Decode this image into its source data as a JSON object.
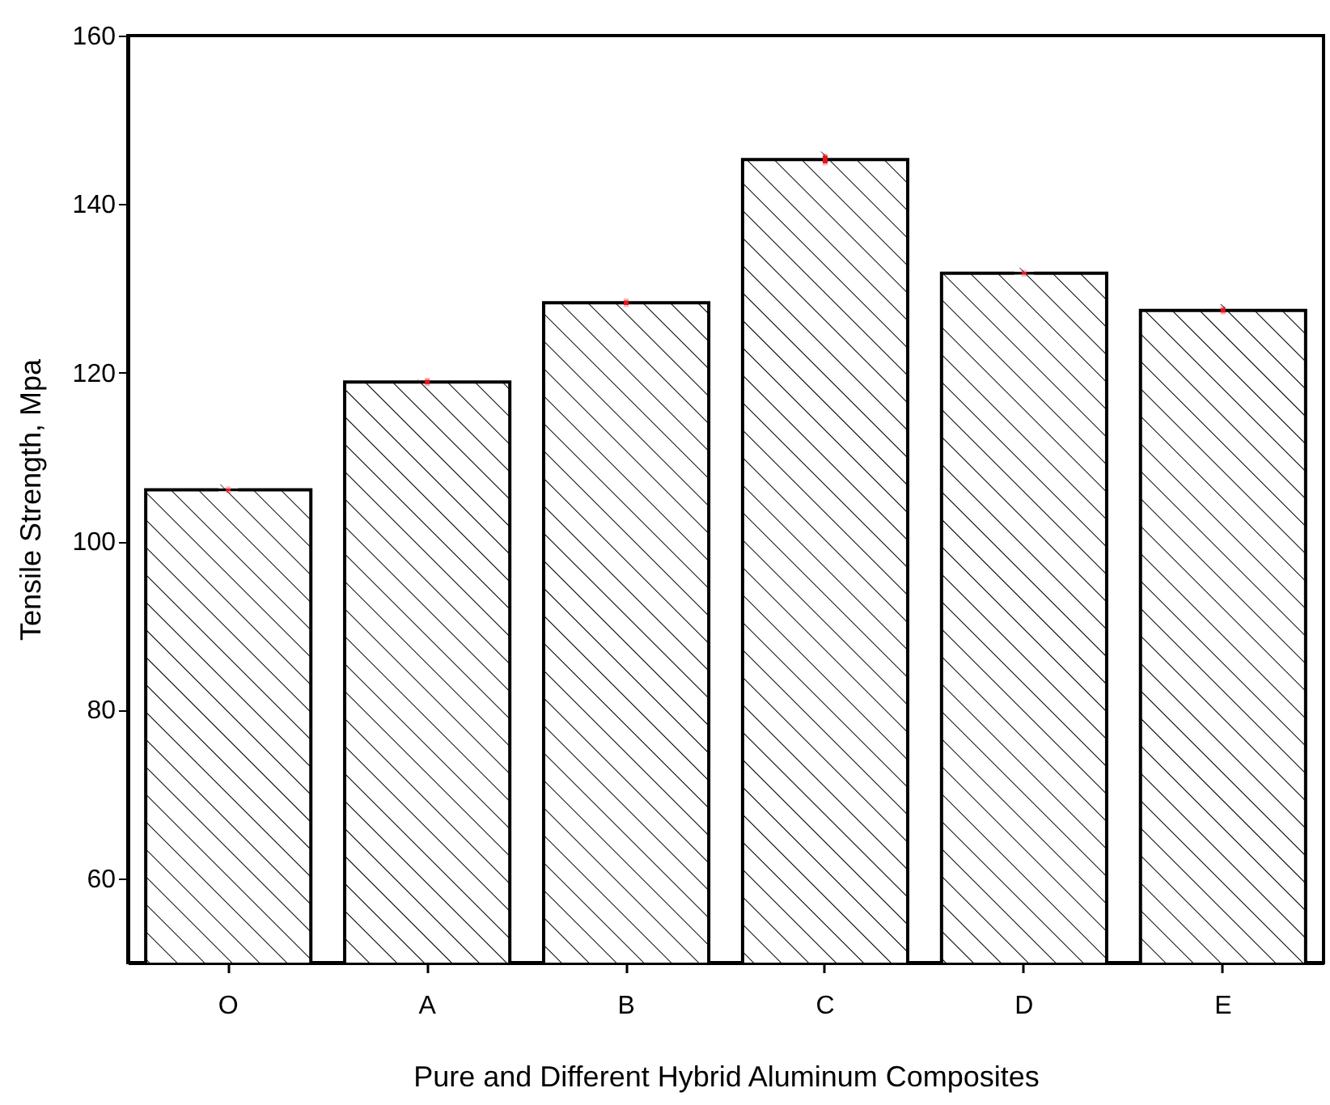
{
  "chart_data": {
    "type": "bar",
    "xlabel": "Pure and Different Hybrid Aluminum Composites",
    "ylabel": "Tensile Strength, Mpa",
    "categories": [
      "O",
      "A",
      "B",
      "C",
      "D",
      "E"
    ],
    "values": [
      106.1,
      118.9,
      128.3,
      145.3,
      131.8,
      127.4
    ],
    "errors": [
      0.4,
      0.5,
      0.5,
      0.7,
      0.4,
      0.5
    ],
    "color": "#000000",
    "ylim": [
      50,
      160
    ],
    "yticks": [
      60,
      80,
      100,
      120,
      140,
      160
    ],
    "grid": false
  }
}
